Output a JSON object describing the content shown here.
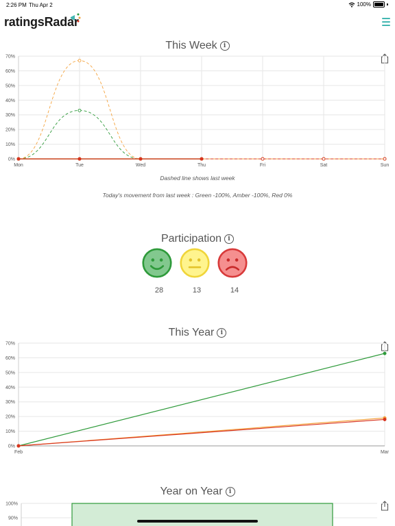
{
  "status": {
    "time": "2:26 PM",
    "date": "Thu Apr 2",
    "battery": "100%"
  },
  "header": {
    "app_name": "ratingsRadar"
  },
  "this_week": {
    "title": "This Week",
    "info": "i",
    "note": "Dashed line shows last week",
    "movement": "Today's movement from last week : Green -100%, Amber -100%, Red 0%"
  },
  "participation": {
    "title": "Participation",
    "info": "i",
    "green": "28",
    "amber": "13",
    "red": "14"
  },
  "this_year": {
    "title": "This Year",
    "info": "i"
  },
  "year_on_year": {
    "title": "Year on Year",
    "info": "i"
  },
  "colors": {
    "green": "#2e9a3a",
    "amber": "#f4a23c",
    "red": "#d8341f",
    "teal": "#42b6b1"
  },
  "chart_data": [
    {
      "type": "line",
      "title": "This Week",
      "categories": [
        "Mon",
        "Tue",
        "Wed",
        "Thu",
        "Fri",
        "Sat",
        "Sun"
      ],
      "y_ticks": [
        "0%",
        "10%",
        "20%",
        "30%",
        "40%",
        "50%",
        "60%",
        "70%"
      ],
      "ylim": [
        0,
        70
      ],
      "grid": true,
      "series": [
        {
          "key": "green",
          "color": "#2e9a3a",
          "values": [
            0,
            0,
            0,
            0,
            null,
            null,
            null
          ]
        },
        {
          "key": "amber",
          "color": "#f4a23c",
          "values": [
            0,
            0,
            0,
            0,
            null,
            null,
            null
          ]
        },
        {
          "key": "red",
          "color": "#d8341f",
          "values": [
            0,
            0,
            0,
            0,
            null,
            null,
            null
          ]
        },
        {
          "key": "green-last-week",
          "color": "#2e9a3a",
          "dashed": true,
          "values": [
            0,
            33,
            0,
            0,
            0,
            0,
            0
          ]
        },
        {
          "key": "amber-last-week",
          "color": "#f4a23c",
          "dashed": true,
          "values": [
            0,
            67,
            0,
            0,
            0,
            0,
            0
          ]
        },
        {
          "key": "red-last-week",
          "color": "#d8341f",
          "dashed": true,
          "values": [
            0,
            0,
            0,
            0,
            0,
            0,
            0
          ]
        }
      ]
    },
    {
      "type": "line",
      "title": "This Year",
      "categories": [
        "Feb",
        "Mar"
      ],
      "y_ticks": [
        "0%",
        "10%",
        "20%",
        "30%",
        "40%",
        "50%",
        "60%",
        "70%"
      ],
      "ylim": [
        0,
        70
      ],
      "grid": true,
      "series": [
        {
          "key": "green",
          "color": "#2e9a3a",
          "values": [
            0,
            63
          ]
        },
        {
          "key": "amber",
          "color": "#f4a23c",
          "values": [
            0,
            19
          ]
        },
        {
          "key": "red",
          "color": "#d8341f",
          "values": [
            0,
            18
          ]
        }
      ]
    },
    {
      "type": "bar",
      "title": "Year on Year",
      "y_ticks": [
        "100%",
        "90%"
      ],
      "ylim": [
        0,
        100
      ],
      "series": [
        {
          "key": "green",
          "color": "#2e9a3a",
          "values": [
            100
          ]
        }
      ]
    }
  ]
}
